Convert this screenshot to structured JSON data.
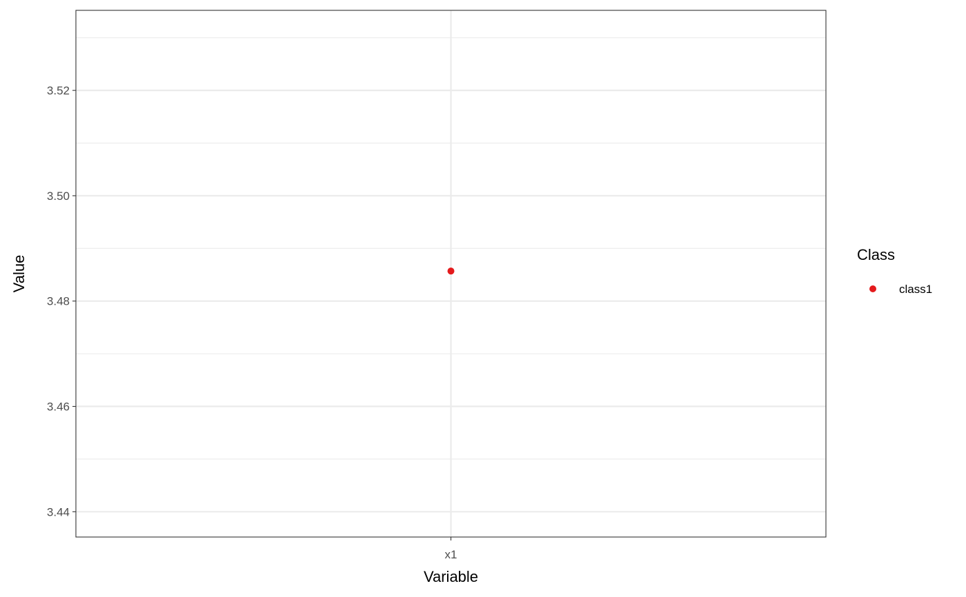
{
  "chart_data": {
    "type": "scatter",
    "categories": [
      "x1"
    ],
    "xlabel": "Variable",
    "ylabel": "Value",
    "ylim": [
      3.4352,
      3.5352
    ],
    "y_ticks": [
      3.44,
      3.46,
      3.48,
      3.5,
      3.52
    ],
    "y_tick_labels": [
      "3.44",
      "3.46",
      "3.48",
      "3.50",
      "3.52"
    ],
    "grid": true,
    "legend": {
      "title": "Class",
      "position": "right",
      "entries": [
        {
          "label": "class1",
          "color": "#e41a1c"
        }
      ]
    },
    "series": [
      {
        "name": "class1",
        "color": "#e41a1c",
        "points": [
          {
            "x": "x1",
            "y": 3.4857
          }
        ]
      }
    ]
  }
}
